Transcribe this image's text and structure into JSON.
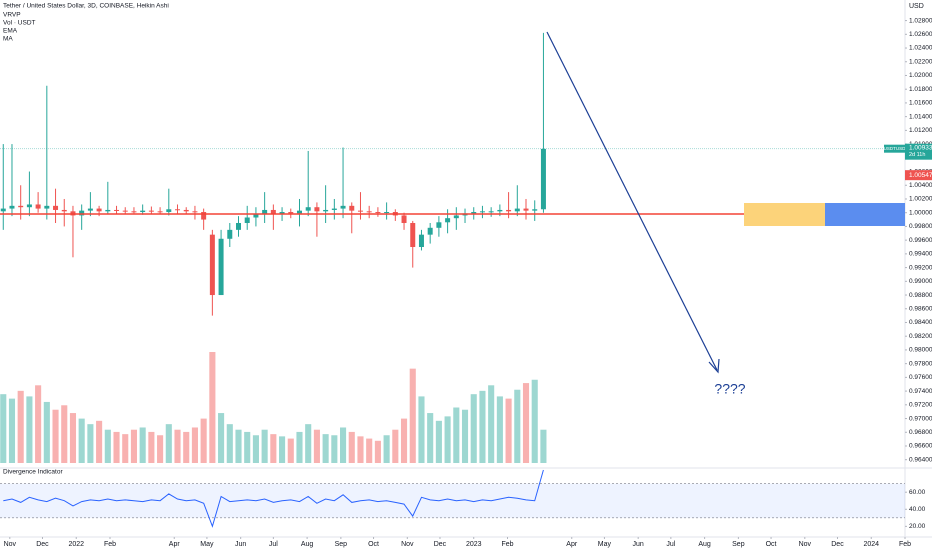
{
  "chart_data": {
    "type": "candlestick",
    "title": "Tether / United States Dollar, 3D, COINBASE, Heikin Ashi",
    "indicators_listed": [
      "VRVP",
      "Vol · USDT",
      "EMA",
      "MA"
    ],
    "currency": "USD",
    "annotation": "????",
    "last_price": 1.00933,
    "countdown": "2d 11h",
    "symbol": "USDTUSD",
    "second_price": 1.00547,
    "up_color": "#26a69a",
    "down_color": "#ef5350",
    "grid": false,
    "xlim": [
      -9,
      822
    ],
    "xticks": [
      {
        "value": 0,
        "label": "Nov"
      },
      {
        "value": 30,
        "label": "Dec"
      },
      {
        "value": 61,
        "label": "2022"
      },
      {
        "value": 92,
        "label": "Feb"
      },
      {
        "value": 151,
        "label": "Apr"
      },
      {
        "value": 181,
        "label": "May"
      },
      {
        "value": 212,
        "label": "Jun"
      },
      {
        "value": 242,
        "label": "Jul"
      },
      {
        "value": 273,
        "label": "Aug"
      },
      {
        "value": 304,
        "label": "Sep"
      },
      {
        "value": 334,
        "label": "Oct"
      },
      {
        "value": 365,
        "label": "Nov"
      },
      {
        "value": 395,
        "label": "Dec"
      },
      {
        "value": 426,
        "label": "2023"
      },
      {
        "value": 457,
        "label": "Feb"
      },
      {
        "value": 516,
        "label": "Apr"
      },
      {
        "value": 546,
        "label": "May"
      },
      {
        "value": 577,
        "label": "Jun"
      },
      {
        "value": 607,
        "label": "Jul"
      },
      {
        "value": 638,
        "label": "Aug"
      },
      {
        "value": 669,
        "label": "Sep"
      },
      {
        "value": 699,
        "label": "Oct"
      },
      {
        "value": 730,
        "label": "Nov"
      },
      {
        "value": 760,
        "label": "Dec"
      },
      {
        "value": 791,
        "label": "2024"
      },
      {
        "value": 822,
        "label": "Feb"
      }
    ],
    "ylim": [
      0.9625,
      1.031
    ],
    "yticks": [
      {
        "value": 1.028,
        "label": "1.02800"
      },
      {
        "value": 1.026,
        "label": "1.02600"
      },
      {
        "value": 1.024,
        "label": "1.02400"
      },
      {
        "value": 1.022,
        "label": "1.02200"
      },
      {
        "value": 1.02,
        "label": "1.02000"
      },
      {
        "value": 1.018,
        "label": "1.01800"
      },
      {
        "value": 1.016,
        "label": "1.01600"
      },
      {
        "value": 1.014,
        "label": "1.01400"
      },
      {
        "value": 1.012,
        "label": "1.01200"
      },
      {
        "value": 1.01,
        "label": "1.01000"
      },
      {
        "value": 1.006,
        "label": "1.00600"
      },
      {
        "value": 1.004,
        "label": "1.00400"
      },
      {
        "value": 1.002,
        "label": "1.00200"
      },
      {
        "value": 1.0,
        "label": "1.00000"
      },
      {
        "value": 0.998,
        "label": "0.99800"
      },
      {
        "value": 0.996,
        "label": "0.99600"
      },
      {
        "value": 0.994,
        "label": "0.99400"
      },
      {
        "value": 0.992,
        "label": "0.99200"
      },
      {
        "value": 0.99,
        "label": "0.99000"
      },
      {
        "value": 0.988,
        "label": "0.98800"
      },
      {
        "value": 0.986,
        "label": "0.98600"
      },
      {
        "value": 0.984,
        "label": "0.98400"
      },
      {
        "value": 0.982,
        "label": "0.98200"
      },
      {
        "value": 0.98,
        "label": "0.98000"
      },
      {
        "value": 0.978,
        "label": "0.97800"
      },
      {
        "value": 0.976,
        "label": "0.97600"
      },
      {
        "value": 0.974,
        "label": "0.97400"
      },
      {
        "value": 0.972,
        "label": "0.97200"
      },
      {
        "value": 0.97,
        "label": "0.97000"
      },
      {
        "value": 0.968,
        "label": "0.96800"
      },
      {
        "value": 0.966,
        "label": "0.96600"
      },
      {
        "value": 0.964,
        "label": "0.96400"
      }
    ],
    "x": [
      -6,
      2,
      10,
      18,
      26,
      34,
      42,
      50,
      58,
      66,
      74,
      82,
      90,
      98,
      106,
      114,
      122,
      130,
      138,
      146,
      154,
      162,
      170,
      178,
      186,
      194,
      202,
      210,
      218,
      226,
      234,
      242,
      250,
      258,
      266,
      274,
      282,
      290,
      298,
      306,
      314,
      322,
      330,
      338,
      346,
      354,
      362,
      370,
      378,
      386,
      394,
      402,
      410,
      418,
      426,
      434,
      442,
      450,
      458,
      466,
      474,
      482,
      490
    ],
    "open": [
      1.0002,
      1.0006,
      1.001,
      1.0008,
      1.0012,
      1.0006,
      1.001,
      1.0004,
      1.0002,
      0.9996,
      1.0003,
      1.0006,
      1.0002,
      1.0004,
      1.0003,
      1.0002,
      1.0001,
      1.0003,
      1.0002,
      1.0001,
      1.0005,
      1.0004,
      1.0002,
      1.0001,
      0.9968,
      0.988,
      0.9962,
      0.9975,
      0.9985,
      0.9993,
      0.9998,
      1.0004,
      0.9998,
      1.0001,
      0.9999,
      1.0003,
      1.0008,
      1.0002,
      1.0004,
      1.0006,
      1.001,
      1.0003,
      1.0002,
      1.0001,
      1.0,
      1.0001,
      0.9996,
      0.9985,
      0.995,
      0.9968,
      0.9978,
      0.9986,
      0.9992,
      0.9996,
      0.9999,
      1.0001,
      1.0002,
      1.0002,
      1.0004,
      1.0002,
      1.0006,
      1.0003,
      1.0005
    ],
    "high": [
      1.01,
      1.01,
      1.004,
      1.006,
      1.003,
      1.0185,
      1.0035,
      1.002,
      1.001,
      1.0012,
      1.003,
      1.001,
      1.0045,
      1.001,
      1.0008,
      1.0008,
      1.0012,
      1.0009,
      1.0008,
      1.0035,
      1.0012,
      1.0008,
      1.001,
      1.0006,
      0.9975,
      0.9975,
      0.9985,
      0.9995,
      1.001,
      1.0008,
      1.003,
      1.0012,
      1.0008,
      1.0006,
      1.002,
      1.009,
      1.0015,
      1.004,
      1.002,
      1.0095,
      1.0015,
      1.003,
      1.001,
      1.0008,
      1.0015,
      1.0005,
      1.0,
      0.9988,
      0.9975,
      0.9985,
      0.9995,
      1.0005,
      1.0008,
      1.0006,
      1.0008,
      1.001,
      1.0008,
      1.0012,
      1.003,
      1.004,
      1.002,
      1.0018,
      1.0262
    ],
    "low": [
      0.9975,
      0.9995,
      0.999,
      0.9995,
      1.0,
      0.999,
      0.9985,
      0.998,
      0.9935,
      0.9975,
      0.9995,
      0.9995,
      0.9998,
      0.9998,
      0.9998,
      0.9999,
      0.9997,
      0.9998,
      0.9998,
      0.9996,
      0.9998,
      0.9998,
      0.999,
      0.9975,
      0.985,
      0.988,
      0.995,
      0.9965,
      0.9975,
      0.998,
      0.9985,
      0.9975,
      0.9988,
      0.9992,
      0.998,
      0.9995,
      0.9965,
      0.9985,
      0.999,
      0.9992,
      0.997,
      0.999,
      0.9992,
      0.9994,
      0.999,
      0.9988,
      0.9975,
      0.992,
      0.9945,
      0.9955,
      0.9965,
      0.997,
      0.9975,
      0.9985,
      0.999,
      0.9992,
      0.9994,
      0.9995,
      0.9992,
      0.9995,
      0.999,
      0.9988,
      1.0
    ],
    "close": [
      1.0006,
      1.001,
      1.0008,
      1.0012,
      1.0006,
      1.001,
      1.0004,
      1.0002,
      0.9996,
      1.0003,
      1.0006,
      1.0002,
      1.0004,
      1.0003,
      1.0002,
      1.0001,
      1.0003,
      1.0002,
      1.0001,
      1.0005,
      1.0004,
      1.0002,
      1.0001,
      0.999,
      0.988,
      0.9962,
      0.9975,
      0.9985,
      0.9993,
      0.9998,
      1.0004,
      0.9998,
      1.0001,
      0.9999,
      1.0003,
      1.0008,
      1.0002,
      1.0004,
      1.0006,
      1.001,
      1.0003,
      1.0002,
      1.0001,
      1.0,
      1.0001,
      0.9996,
      0.9985,
      0.995,
      0.9968,
      0.9978,
      0.9986,
      0.9992,
      0.9996,
      0.9999,
      1.0001,
      1.0002,
      1.0002,
      1.0004,
      1.0002,
      1.0006,
      1.0003,
      1.0005,
      1.0093
    ],
    "volume": [
      62,
      58,
      65,
      60,
      70,
      55,
      48,
      52,
      45,
      40,
      35,
      38,
      30,
      28,
      26,
      30,
      32,
      28,
      25,
      35,
      30,
      28,
      32,
      40,
      100,
      45,
      35,
      30,
      28,
      25,
      30,
      26,
      24,
      22,
      28,
      35,
      30,
      26,
      25,
      32,
      28,
      24,
      22,
      20,
      25,
      30,
      40,
      85,
      60,
      45,
      38,
      42,
      50,
      48,
      62,
      65,
      70,
      60,
      58,
      66,
      72,
      75,
      30
    ],
    "indicator": {
      "name": "Divergence Indicator",
      "color": "#2962ff",
      "ylim": [
        4,
        86
      ],
      "yticks": [
        {
          "value": 60,
          "label": "60.00"
        },
        {
          "value": 40,
          "label": "40.00"
        },
        {
          "value": 20,
          "label": "20.00"
        }
      ],
      "band": [
        30,
        70
      ],
      "values": [
        50,
        52,
        48,
        54,
        51,
        49,
        53,
        50,
        44,
        49,
        51,
        50,
        52,
        50,
        51,
        50,
        49,
        51,
        50,
        58,
        52,
        50,
        51,
        47,
        20,
        55,
        49,
        50,
        51,
        50,
        52,
        48,
        50,
        51,
        49,
        55,
        47,
        52,
        50,
        57,
        48,
        50,
        51,
        49,
        50,
        48,
        46,
        32,
        54,
        51,
        50,
        52,
        50,
        51,
        49,
        51,
        50,
        52,
        54,
        53,
        51,
        50,
        86
      ]
    }
  }
}
